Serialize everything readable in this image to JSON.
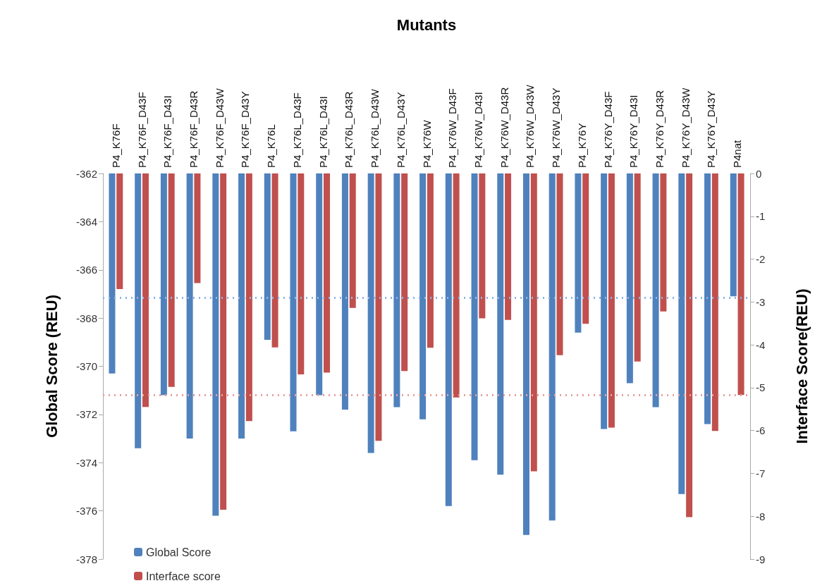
{
  "chart_data": {
    "type": "bar",
    "xlabel": "Mutants",
    "ylabel": "Global Score (REU)",
    "y2label": "Interface Score(REU)",
    "categories": [
      "P4_K76F",
      "P4_K76F_D43F",
      "P4_K76F_D43I",
      "P4_K76F_D43R",
      "P4_K76F_D43W",
      "P4_K76F_D43Y",
      "P4_K76L",
      "P4_K76L_D43F",
      "P4_K76L_D43I",
      "P4_K76L_D43R",
      "P4_K76L_D43W",
      "P4_K76L_D43Y",
      "P4_K76W",
      "P4_K76W_D43F",
      "P4_K76W_D43I",
      "P4_K76W_D43R",
      "P4_K76W_D43W",
      "P4_K76W_D43Y",
      "P4_K76Y",
      "P4_K76Y_D43F",
      "P4_K76Y_D43I",
      "P4_K76Y_D43R",
      "P4_K76Y_D43W",
      "P4_K76Y_D43Y",
      "P4nat"
    ],
    "series": [
      {
        "name": "Global Score",
        "color": "#4f81bd",
        "values": [
          -370.3,
          -373.4,
          -371.2,
          -373.0,
          -376.2,
          -373.0,
          -368.9,
          -372.7,
          -371.2,
          -371.8,
          -373.6,
          -371.7,
          -372.2,
          -375.8,
          -373.9,
          -374.5,
          -377.0,
          -376.4,
          -368.6,
          -372.6,
          -370.7,
          -371.7,
          -375.3,
          -372.4,
          -367.1
        ]
      },
      {
        "name": "Interface score",
        "color": "#c0504d",
        "axis": "y2",
        "values": [
          -2.7,
          -5.45,
          -4.98,
          -2.56,
          -7.85,
          -5.78,
          -4.06,
          -4.69,
          -4.65,
          -3.14,
          -6.24,
          -4.61,
          -4.07,
          -5.23,
          -3.38,
          -3.42,
          -6.95,
          -4.24,
          -3.51,
          -5.93,
          -4.39,
          -3.22,
          -8.02,
          -6.01,
          -5.17
        ]
      }
    ],
    "ylim": [
      -378,
      -362
    ],
    "yticks": [
      -378,
      -376,
      -374,
      -372,
      -370,
      -368,
      -366,
      -364,
      -362
    ],
    "y2lim": [
      -9,
      0
    ],
    "y2ticks": [
      -9,
      -8,
      -7,
      -6,
      -5,
      -4,
      -3,
      -2,
      -1,
      0
    ],
    "ref_lines": [
      {
        "axis": "y",
        "value": -367.15,
        "color": "#8eb4e3",
        "line_style": "dotted"
      },
      {
        "axis": "y2",
        "value": -5.17,
        "color": "#e6a09e",
        "line_style": "dotted"
      }
    ],
    "grid": false,
    "legend": "bottom left"
  }
}
